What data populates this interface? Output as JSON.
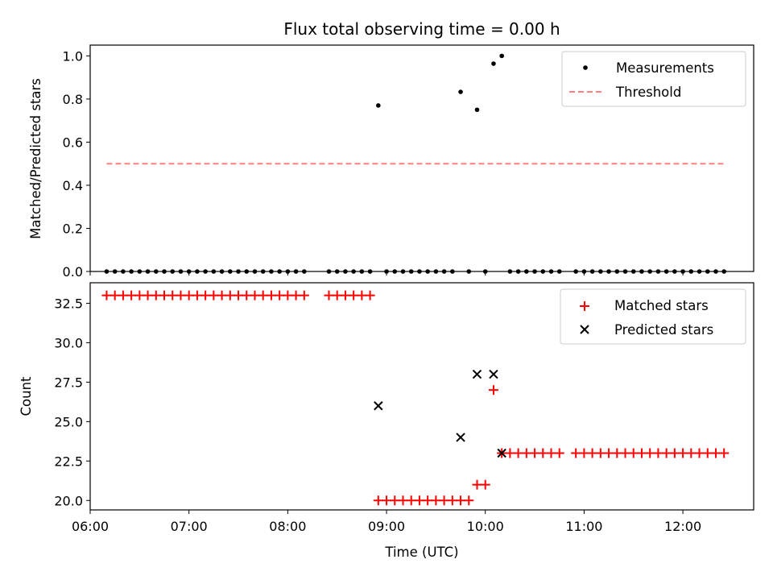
{
  "chart_data": [
    {
      "type": "scatter",
      "title": "Flux total observing time = 0.00 h",
      "ylabel": "Matched/Predicted stars",
      "xlabel": "",
      "xlim": [
        "06:00",
        "12:43"
      ],
      "ylim": [
        0,
        1.05
      ],
      "yticks": [
        "0.0",
        "0.2",
        "0.4",
        "0.6",
        "0.8",
        "1.0"
      ],
      "legend_position": "upper right",
      "threshold": {
        "name": "Threshold",
        "value": 0.5,
        "x_start": "06:10",
        "x_end": "12:25",
        "color": "#ff7f7f",
        "style": "dashed"
      },
      "series": [
        {
          "name": "Measurements",
          "color": "#000000",
          "marker": "dot",
          "points": [
            [
              "06:10",
              0
            ],
            [
              "06:15",
              0
            ],
            [
              "06:20",
              0
            ],
            [
              "06:25",
              0
            ],
            [
              "06:30",
              0
            ],
            [
              "06:35",
              0
            ],
            [
              "06:40",
              0
            ],
            [
              "06:45",
              0
            ],
            [
              "06:50",
              0
            ],
            [
              "06:55",
              0
            ],
            [
              "07:00",
              0
            ],
            [
              "07:05",
              0
            ],
            [
              "07:10",
              0
            ],
            [
              "07:15",
              0
            ],
            [
              "07:20",
              0
            ],
            [
              "07:25",
              0
            ],
            [
              "07:30",
              0
            ],
            [
              "07:35",
              0
            ],
            [
              "07:40",
              0
            ],
            [
              "07:45",
              0
            ],
            [
              "07:50",
              0
            ],
            [
              "07:55",
              0
            ],
            [
              "08:00",
              0
            ],
            [
              "08:05",
              0
            ],
            [
              "08:10",
              0
            ],
            [
              "08:25",
              0
            ],
            [
              "08:30",
              0
            ],
            [
              "08:35",
              0
            ],
            [
              "08:40",
              0
            ],
            [
              "08:45",
              0
            ],
            [
              "08:50",
              0
            ],
            [
              "08:55",
              0.77
            ],
            [
              "09:00",
              0
            ],
            [
              "09:05",
              0
            ],
            [
              "09:10",
              0
            ],
            [
              "09:15",
              0
            ],
            [
              "09:20",
              0
            ],
            [
              "09:25",
              0
            ],
            [
              "09:30",
              0
            ],
            [
              "09:35",
              0
            ],
            [
              "09:40",
              0
            ],
            [
              "09:45",
              0.833
            ],
            [
              "09:50",
              0
            ],
            [
              "09:55",
              0.75
            ],
            [
              "10:00",
              0
            ],
            [
              "10:05",
              0.964
            ],
            [
              "10:10",
              1.0
            ],
            [
              "10:15",
              0
            ],
            [
              "10:20",
              0
            ],
            [
              "10:25",
              0
            ],
            [
              "10:30",
              0
            ],
            [
              "10:35",
              0
            ],
            [
              "10:40",
              0
            ],
            [
              "10:45",
              0
            ],
            [
              "10:55",
              0
            ],
            [
              "11:00",
              0
            ],
            [
              "11:05",
              0
            ],
            [
              "11:10",
              0
            ],
            [
              "11:15",
              0
            ],
            [
              "11:20",
              0
            ],
            [
              "11:25",
              0
            ],
            [
              "11:30",
              0
            ],
            [
              "11:35",
              0
            ],
            [
              "11:40",
              0
            ],
            [
              "11:45",
              0
            ],
            [
              "11:50",
              0
            ],
            [
              "11:55",
              0
            ],
            [
              "12:00",
              0
            ],
            [
              "12:05",
              0
            ],
            [
              "12:10",
              0
            ],
            [
              "12:15",
              0
            ],
            [
              "12:20",
              0
            ],
            [
              "12:25",
              0
            ]
          ]
        }
      ]
    },
    {
      "type": "scatter",
      "title": "",
      "ylabel": "Count",
      "xlabel": "Time (UTC)",
      "xlim": [
        "06:00",
        "12:43"
      ],
      "ylim": [
        19.4,
        33.8
      ],
      "yticks": [
        "20.0",
        "22.5",
        "25.0",
        "27.5",
        "30.0",
        "32.5"
      ],
      "xticks": [
        "06:00",
        "07:00",
        "08:00",
        "09:00",
        "10:00",
        "11:00",
        "12:00"
      ],
      "legend_position": "upper right",
      "series": [
        {
          "name": "Matched stars",
          "color": "#ff0000",
          "marker": "plus",
          "points": [
            [
              "06:10",
              33
            ],
            [
              "06:15",
              33
            ],
            [
              "06:20",
              33
            ],
            [
              "06:25",
              33
            ],
            [
              "06:30",
              33
            ],
            [
              "06:35",
              33
            ],
            [
              "06:40",
              33
            ],
            [
              "06:45",
              33
            ],
            [
              "06:50",
              33
            ],
            [
              "06:55",
              33
            ],
            [
              "07:00",
              33
            ],
            [
              "07:05",
              33
            ],
            [
              "07:10",
              33
            ],
            [
              "07:15",
              33
            ],
            [
              "07:20",
              33
            ],
            [
              "07:25",
              33
            ],
            [
              "07:30",
              33
            ],
            [
              "07:35",
              33
            ],
            [
              "07:40",
              33
            ],
            [
              "07:45",
              33
            ],
            [
              "07:50",
              33
            ],
            [
              "07:55",
              33
            ],
            [
              "08:00",
              33
            ],
            [
              "08:05",
              33
            ],
            [
              "08:10",
              33
            ],
            [
              "08:25",
              33
            ],
            [
              "08:30",
              33
            ],
            [
              "08:35",
              33
            ],
            [
              "08:40",
              33
            ],
            [
              "08:45",
              33
            ],
            [
              "08:50",
              33
            ],
            [
              "08:55",
              20
            ],
            [
              "09:00",
              20
            ],
            [
              "09:05",
              20
            ],
            [
              "09:10",
              20
            ],
            [
              "09:15",
              20
            ],
            [
              "09:20",
              20
            ],
            [
              "09:25",
              20
            ],
            [
              "09:30",
              20
            ],
            [
              "09:35",
              20
            ],
            [
              "09:40",
              20
            ],
            [
              "09:45",
              20
            ],
            [
              "09:50",
              20
            ],
            [
              "09:55",
              21
            ],
            [
              "10:00",
              21
            ],
            [
              "10:05",
              27
            ],
            [
              "10:10",
              23
            ],
            [
              "10:15",
              23
            ],
            [
              "10:20",
              23
            ],
            [
              "10:25",
              23
            ],
            [
              "10:30",
              23
            ],
            [
              "10:35",
              23
            ],
            [
              "10:40",
              23
            ],
            [
              "10:45",
              23
            ],
            [
              "10:55",
              23
            ],
            [
              "11:00",
              23
            ],
            [
              "11:05",
              23
            ],
            [
              "11:10",
              23
            ],
            [
              "11:15",
              23
            ],
            [
              "11:20",
              23
            ],
            [
              "11:25",
              23
            ],
            [
              "11:30",
              23
            ],
            [
              "11:35",
              23
            ],
            [
              "11:40",
              23
            ],
            [
              "11:45",
              23
            ],
            [
              "11:50",
              23
            ],
            [
              "11:55",
              23
            ],
            [
              "12:00",
              23
            ],
            [
              "12:05",
              23
            ],
            [
              "12:10",
              23
            ],
            [
              "12:15",
              23
            ],
            [
              "12:20",
              23
            ],
            [
              "12:25",
              23
            ]
          ]
        },
        {
          "name": "Predicted stars",
          "color": "#000000",
          "marker": "x",
          "points": [
            [
              "08:55",
              26
            ],
            [
              "09:45",
              24
            ],
            [
              "09:55",
              28
            ],
            [
              "10:05",
              28
            ],
            [
              "10:10",
              23
            ]
          ]
        }
      ]
    }
  ]
}
